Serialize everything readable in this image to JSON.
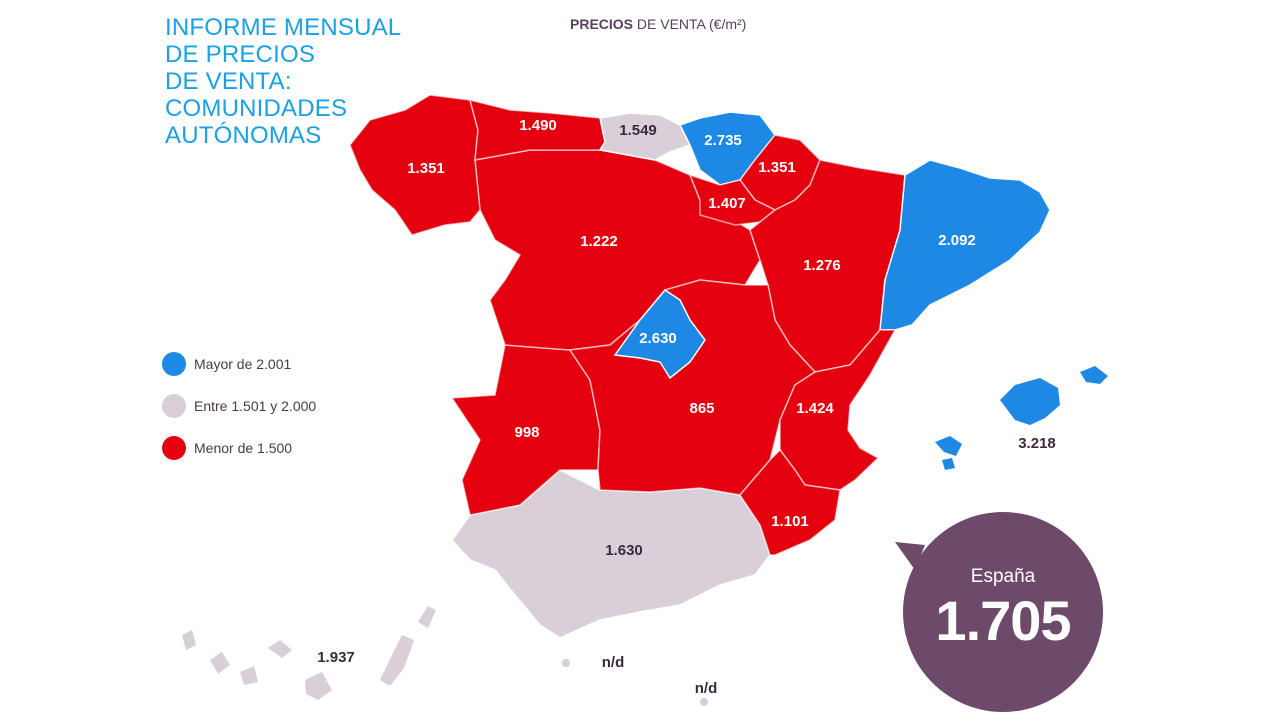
{
  "title": {
    "lines": [
      "INFORME MENSUAL",
      "DE PRECIOS",
      "DE VENTA:",
      "COMUNIDADES",
      "AUTÓNOMAS"
    ]
  },
  "subtitle": {
    "bold": "PRECIOS",
    "rest": " DE VENTA (€/m²)"
  },
  "legend": [
    {
      "label": "Mayor de 2.001",
      "color": "#1e88e5"
    },
    {
      "label": "Entre 1.501 y 2.000",
      "color": "#d8cfd8"
    },
    {
      "label": "Menor de 1.500",
      "color": "#e4000f"
    }
  ],
  "regions": {
    "galicia": "1.351",
    "asturias": "1.490",
    "cantabria": "1.549",
    "pais_vasco": "2.735",
    "navarra": "1.351",
    "la_rioja": "1.407",
    "castilla_leon": "1.222",
    "aragon": "1.276",
    "cataluna": "2.092",
    "madrid": "2.630",
    "extremadura": "998",
    "castilla_la_mancha": "865",
    "valencia": "1.424",
    "murcia": "1.101",
    "andalucia": "1.630",
    "baleares": "3.218",
    "canarias": "1.937",
    "ceuta": "n/d",
    "melilla": "n/d"
  },
  "colors": {
    "high": "#1e88e5",
    "mid": "#d8cfd8",
    "low": "#e4000f",
    "bubble": "#6e4a6a"
  },
  "national": {
    "label": "España",
    "value": "1.705"
  }
}
